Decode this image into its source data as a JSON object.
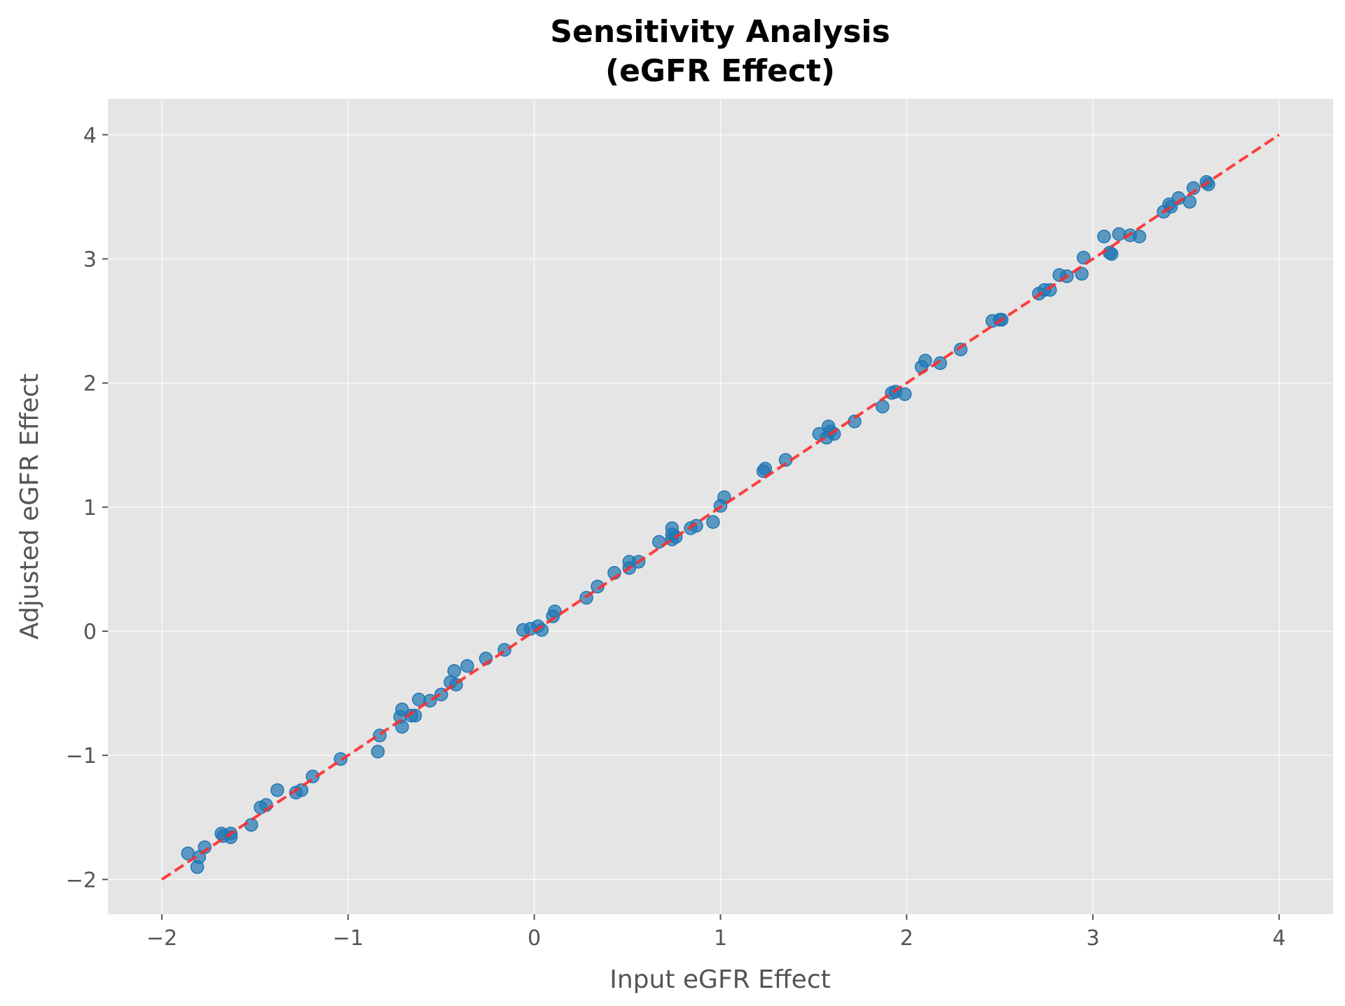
{
  "chart_data": {
    "type": "scatter",
    "title_lines": [
      "Sensitivity Analysis",
      "(eGFR Effect)"
    ],
    "xlabel": "Input eGFR Effect",
    "ylabel": "Adjusted eGFR Effect",
    "xlim": [
      -2.29,
      4.29
    ],
    "ylim": [
      -2.28,
      4.29
    ],
    "xticks": [
      -2,
      -1,
      0,
      1,
      2,
      3,
      4
    ],
    "yticks": [
      -2,
      -1,
      0,
      1,
      2,
      3,
      4
    ],
    "xtick_labels": [
      "−2",
      "−1",
      "0",
      "1",
      "2",
      "3",
      "4"
    ],
    "ytick_labels": [
      "−2",
      "−1",
      "0",
      "1",
      "2",
      "3",
      "4"
    ],
    "grid": true,
    "colors": {
      "points": "#1f77b4",
      "reference_line": "#ff2a2a",
      "background": "#e5e5e5",
      "grid": "#ffffff"
    },
    "reference_line": {
      "style": "dashed",
      "from": [
        -2,
        -2
      ],
      "to": [
        4,
        4
      ]
    },
    "points": [
      [
        -1.86,
        -1.79
      ],
      [
        -1.81,
        -1.9
      ],
      [
        -1.8,
        -1.82
      ],
      [
        -1.77,
        -1.74
      ],
      [
        -1.68,
        -1.63
      ],
      [
        -1.67,
        -1.65
      ],
      [
        -1.63,
        -1.63
      ],
      [
        -1.63,
        -1.66
      ],
      [
        -1.52,
        -1.56
      ],
      [
        -1.47,
        -1.42
      ],
      [
        -1.44,
        -1.4
      ],
      [
        -1.38,
        -1.28
      ],
      [
        -1.28,
        -1.3
      ],
      [
        -1.25,
        -1.28
      ],
      [
        -1.19,
        -1.17
      ],
      [
        -1.04,
        -1.03
      ],
      [
        -0.84,
        -0.97
      ],
      [
        -0.83,
        -0.84
      ],
      [
        -0.72,
        -0.69
      ],
      [
        -0.71,
        -0.63
      ],
      [
        -0.71,
        -0.77
      ],
      [
        -0.66,
        -0.68
      ],
      [
        -0.64,
        -0.68
      ],
      [
        -0.62,
        -0.55
      ],
      [
        -0.56,
        -0.56
      ],
      [
        -0.5,
        -0.51
      ],
      [
        -0.45,
        -0.41
      ],
      [
        -0.43,
        -0.32
      ],
      [
        -0.42,
        -0.43
      ],
      [
        -0.36,
        -0.28
      ],
      [
        -0.26,
        -0.22
      ],
      [
        -0.16,
        -0.15
      ],
      [
        -0.06,
        0.01
      ],
      [
        -0.02,
        0.02
      ],
      [
        0.02,
        0.04
      ],
      [
        0.04,
        0.01
      ],
      [
        0.1,
        0.12
      ],
      [
        0.11,
        0.16
      ],
      [
        0.28,
        0.27
      ],
      [
        0.34,
        0.36
      ],
      [
        0.43,
        0.47
      ],
      [
        0.51,
        0.56
      ],
      [
        0.51,
        0.51
      ],
      [
        0.56,
        0.56
      ],
      [
        0.67,
        0.72
      ],
      [
        0.74,
        0.83
      ],
      [
        0.74,
        0.78
      ],
      [
        0.74,
        0.74
      ],
      [
        0.76,
        0.76
      ],
      [
        0.84,
        0.83
      ],
      [
        0.87,
        0.85
      ],
      [
        0.96,
        0.88
      ],
      [
        1.0,
        1.01
      ],
      [
        1.02,
        1.08
      ],
      [
        1.23,
        1.29
      ],
      [
        1.24,
        1.31
      ],
      [
        1.35,
        1.38
      ],
      [
        1.53,
        1.59
      ],
      [
        1.57,
        1.56
      ],
      [
        1.58,
        1.65
      ],
      [
        1.59,
        1.61
      ],
      [
        1.61,
        1.59
      ],
      [
        1.72,
        1.69
      ],
      [
        1.87,
        1.81
      ],
      [
        1.92,
        1.92
      ],
      [
        1.94,
        1.93
      ],
      [
        1.99,
        1.91
      ],
      [
        2.08,
        2.13
      ],
      [
        2.1,
        2.18
      ],
      [
        2.18,
        2.16
      ],
      [
        2.29,
        2.27
      ],
      [
        2.46,
        2.5
      ],
      [
        2.5,
        2.51
      ],
      [
        2.51,
        2.51
      ],
      [
        2.71,
        2.72
      ],
      [
        2.74,
        2.75
      ],
      [
        2.77,
        2.75
      ],
      [
        2.82,
        2.87
      ],
      [
        2.86,
        2.86
      ],
      [
        2.94,
        2.88
      ],
      [
        2.95,
        3.01
      ],
      [
        3.06,
        3.18
      ],
      [
        3.09,
        3.05
      ],
      [
        3.1,
        3.04
      ],
      [
        3.14,
        3.2
      ],
      [
        3.2,
        3.19
      ],
      [
        3.25,
        3.18
      ],
      [
        3.38,
        3.38
      ],
      [
        3.41,
        3.44
      ],
      [
        3.42,
        3.42
      ],
      [
        3.46,
        3.49
      ],
      [
        3.52,
        3.46
      ],
      [
        3.54,
        3.57
      ],
      [
        3.61,
        3.62
      ],
      [
        3.62,
        3.6
      ]
    ]
  }
}
